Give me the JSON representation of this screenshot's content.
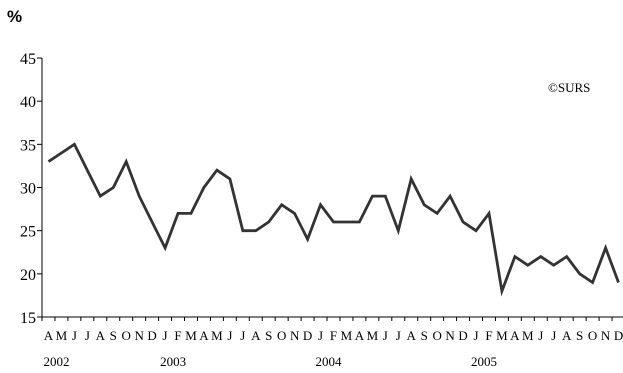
{
  "chart_data": {
    "type": "line",
    "unit_label": "%",
    "watermark": "©SURS",
    "grid": false,
    "ylim": [
      15,
      45
    ],
    "y_ticks": [
      15,
      20,
      25,
      30,
      35,
      40,
      45
    ],
    "month_labels": [
      "A",
      "M",
      "J",
      "J",
      "A",
      "S",
      "O",
      "N",
      "D",
      "J",
      "F",
      "M",
      "A",
      "M",
      "J",
      "J",
      "A",
      "S",
      "O",
      "N",
      "D",
      "J",
      "F",
      "M",
      "A",
      "M",
      "J",
      "J",
      "A",
      "S",
      "O",
      "N",
      "D",
      "J",
      "F",
      "M",
      "A",
      "M",
      "J",
      "J",
      "A",
      "S",
      "O",
      "N",
      "D"
    ],
    "year_labels": [
      {
        "label": "2002",
        "month_index": 0
      },
      {
        "label": "2003",
        "month_index": 9
      },
      {
        "label": "2004",
        "month_index": 21
      },
      {
        "label": "2005",
        "month_index": 33
      }
    ],
    "series": [
      {
        "color": "#333333",
        "values": [
          33,
          34,
          35,
          32,
          29,
          30,
          33,
          29,
          26,
          23,
          27,
          27,
          30,
          32,
          31,
          25,
          25,
          26,
          28,
          27,
          24,
          28,
          26,
          26,
          26,
          29,
          29,
          25,
          31,
          28,
          27,
          29,
          26,
          25,
          27,
          18,
          22,
          21,
          22,
          21,
          22,
          20,
          19,
          23,
          19
        ]
      }
    ]
  }
}
